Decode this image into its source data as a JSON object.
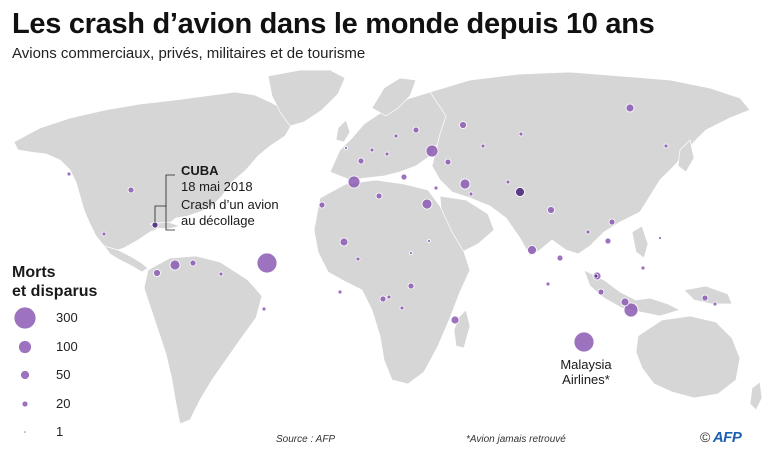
{
  "header": {
    "title": "Les crash d’avion dans le monde depuis 10 ans",
    "subtitle": "Avions commerciaux, privés, militaires et de tourisme"
  },
  "legend": {
    "title_line1": "Morts",
    "title_line2": "et disparus",
    "items": [
      {
        "label": "300",
        "value": 300
      },
      {
        "label": "100",
        "value": 100
      },
      {
        "label": "50",
        "value": 50
      },
      {
        "label": "20",
        "value": 20
      },
      {
        "label": "1",
        "value": 1
      }
    ]
  },
  "callout_cuba": {
    "title": "CUBA",
    "date": "18 mai 2018",
    "text_line1": "Crash d’un avion",
    "text_line2": "au décollage"
  },
  "callout_malaysia": {
    "line1": "Malaysia",
    "line2": "Airlines*"
  },
  "footer": {
    "source": "Source : AFP",
    "footnote": "*Avion jamais retrouvé",
    "copyright": "©",
    "logo": "AFP"
  },
  "colors": {
    "land": "#d6d6d6",
    "crash_dot": "#8c5ab4",
    "crash_dot_dark": "#5b3a86",
    "logo": "#1f5fb0"
  }
}
